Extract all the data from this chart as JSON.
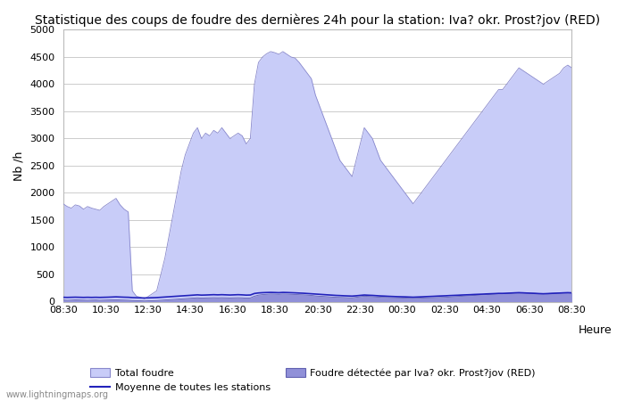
{
  "title": "Statistique des coups de foudre des dernières 24h pour la station: Iva? okr. Prost?jov (RED)",
  "ylabel": "Nb /h",
  "xlabel": "Heure",
  "watermark": "www.lightningmaps.org",
  "legend": {
    "total_foudre": "Total foudre",
    "moyenne": "Moyenne de toutes les stations",
    "foudre_station": "Foudre détectée par Iva? okr. Prost?jov (RED)"
  },
  "x_ticks": [
    "08:30",
    "10:30",
    "12:30",
    "14:30",
    "16:30",
    "18:30",
    "20:30",
    "22:30",
    "00:30",
    "02:30",
    "04:30",
    "06:30",
    "08:30"
  ],
  "ylim": [
    0,
    5000
  ],
  "yticks": [
    0,
    500,
    1000,
    1500,
    2000,
    2500,
    3000,
    3500,
    4000,
    4500,
    5000
  ],
  "total_foudre_color": "#c8ccf8",
  "total_foudre_edge": "#8888cc",
  "foudre_station_color": "#9090d8",
  "foudre_station_edge": "#6060b0",
  "moyenne_color": "#2222bb",
  "background_color": "#ffffff",
  "grid_color": "#cccccc",
  "total_foudre_values": [
    1800,
    1750,
    1720,
    1780,
    1760,
    1700,
    1750,
    1720,
    1700,
    1680,
    1750,
    1800,
    1850,
    1900,
    1780,
    1700,
    1650,
    200,
    100,
    80,
    50,
    100,
    150,
    200,
    500,
    800,
    1200,
    1600,
    2000,
    2400,
    2700,
    2900,
    3100,
    3200,
    3000,
    3100,
    3050,
    3150,
    3100,
    3200,
    3100,
    3000,
    3050,
    3100,
    3050,
    2900,
    3000,
    4000,
    4400,
    4500,
    4560,
    4600,
    4580,
    4550,
    4600,
    4550,
    4500,
    4480,
    4400,
    4300,
    4200,
    4100,
    3800,
    3600,
    3400,
    3200,
    3000,
    2800,
    2600,
    2500,
    2400,
    2300,
    2600,
    2900,
    3200,
    3100,
    3000,
    2800,
    2600,
    2500,
    2400,
    2300,
    2200,
    2100,
    2000,
    1900,
    1800,
    1900,
    2000,
    2100,
    2200,
    2300,
    2400,
    2500,
    2600,
    2700,
    2800,
    2900,
    3000,
    3100,
    3200,
    3300,
    3400,
    3500,
    3600,
    3700,
    3800,
    3900,
    3900,
    4000,
    4100,
    4200,
    4300,
    4250,
    4200,
    4150,
    4100,
    4050,
    4000,
    4050,
    4100,
    4150,
    4200,
    4300,
    4350,
    4300
  ],
  "foudre_station_values": [
    30,
    25,
    28,
    32,
    30,
    28,
    25,
    28,
    30,
    25,
    28,
    30,
    32,
    35,
    30,
    28,
    25,
    20,
    18,
    15,
    12,
    15,
    18,
    20,
    25,
    30,
    35,
    40,
    45,
    50,
    55,
    60,
    65,
    70,
    65,
    68,
    70,
    72,
    70,
    72,
    70,
    68,
    70,
    72,
    70,
    65,
    68,
    100,
    120,
    130,
    135,
    140,
    138,
    135,
    140,
    138,
    135,
    132,
    128,
    125,
    120,
    115,
    105,
    100,
    95,
    90,
    85,
    80,
    78,
    75,
    72,
    70,
    80,
    90,
    100,
    95,
    90,
    85,
    80,
    78,
    75,
    72,
    70,
    68,
    65,
    62,
    60,
    62,
    65,
    68,
    70,
    72,
    75,
    78,
    80,
    85,
    90,
    95,
    100,
    105,
    110,
    115,
    120,
    125,
    130,
    135,
    140,
    145,
    145,
    150,
    155,
    160,
    165,
    162,
    158,
    155,
    152,
    148,
    145,
    148,
    152,
    155,
    158,
    162,
    165,
    162
  ],
  "moyenne_values": [
    80,
    78,
    80,
    82,
    80,
    78,
    80,
    78,
    80,
    78,
    80,
    82,
    85,
    88,
    85,
    82,
    80,
    75,
    72,
    70,
    68,
    70,
    72,
    75,
    80,
    85,
    90,
    95,
    100,
    105,
    110,
    115,
    120,
    125,
    120,
    122,
    125,
    128,
    125,
    128,
    125,
    122,
    125,
    128,
    125,
    120,
    122,
    150,
    160,
    165,
    168,
    170,
    168,
    165,
    170,
    168,
    165,
    162,
    158,
    155,
    150,
    145,
    140,
    135,
    130,
    125,
    120,
    115,
    112,
    108,
    105,
    102,
    108,
    115,
    122,
    118,
    115,
    110,
    105,
    102,
    98,
    95,
    92,
    90,
    88,
    85,
    82,
    85,
    88,
    92,
    95,
    98,
    102,
    105,
    108,
    112,
    115,
    118,
    122,
    125,
    128,
    132,
    135,
    138,
    142,
    145,
    148,
    152,
    152,
    155,
    158,
    162,
    165,
    162,
    158,
    155,
    152,
    148,
    145,
    148,
    152,
    155,
    158,
    162,
    165,
    162
  ]
}
